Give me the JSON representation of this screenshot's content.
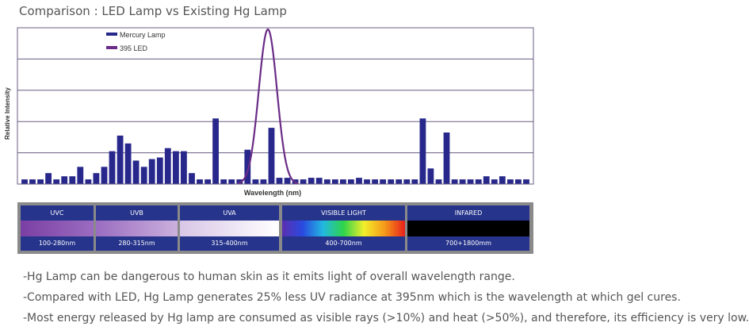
{
  "page": {
    "title": "Comparison : LED Lamp vs Existing Hg Lamp"
  },
  "chart_data": {
    "type": "bar",
    "xlabel": "Wavelength (nm)",
    "ylabel": "Relative Intensity",
    "ylim": [
      0,
      100
    ],
    "grid": true,
    "legend_position": "top-left",
    "series": [
      {
        "name": "Mercury Lamp",
        "kind": "bar",
        "values": [
          3,
          3,
          3,
          7,
          3,
          5,
          5,
          11,
          3,
          7,
          11,
          21,
          31,
          26,
          15,
          11,
          16,
          17,
          23,
          21,
          21,
          7,
          3,
          3,
          42,
          3,
          3,
          3,
          22,
          3,
          3,
          36,
          4,
          4,
          3,
          3,
          4,
          4,
          3,
          3,
          3,
          3,
          4,
          3,
          3,
          3,
          3,
          3,
          3,
          3,
          42,
          10,
          3,
          33,
          3,
          3,
          3,
          3,
          5,
          3,
          5,
          3,
          3,
          3
        ]
      },
      {
        "name": "395 LED",
        "kind": "line",
        "peak": 100
      }
    ],
    "colors": {
      "mercury": "#28288c",
      "led": "#6a2c86",
      "grid": "#6a5d80"
    }
  },
  "spectrum_bands": [
    {
      "name": "UVC",
      "range": "100-280nm"
    },
    {
      "name": "UVB",
      "range": "280-315nm"
    },
    {
      "name": "UVA",
      "range": "315-400nm"
    },
    {
      "name": "VISIBLE LIGHT",
      "range": "400-700nm"
    },
    {
      "name": "INFARED",
      "range": "700+1800mm"
    }
  ],
  "notes": [
    "-Hg Lamp can be dangerous to human skin as it emits light of overall wavelength range.",
    "-Compared with LED, Hg Lamp generates 25% less UV radiance at 395nm which is the wavelength at which gel cures.",
    "-Most energy released by Hg lamp are consumed as visible rays (>10%) and heat (>50%), and therefore, its efficiency is very low."
  ]
}
